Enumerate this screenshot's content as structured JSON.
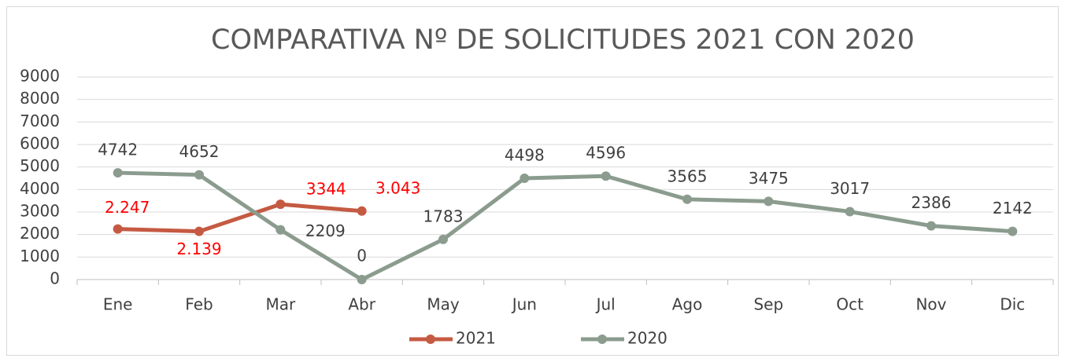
{
  "chart_data": {
    "type": "line",
    "title": "COMPARATIVA Nº DE SOLICITUDES 2021 CON 2020",
    "categories": [
      "Ene",
      "Feb",
      "Mar",
      "Abr",
      "May",
      "Jun",
      "Jul",
      "Ago",
      "Sep",
      "Oct",
      "Nov",
      "Dic"
    ],
    "series": [
      {
        "name": "2021",
        "color": "#c55a42",
        "label_color": "#ff0000",
        "values": [
          2247,
          2139,
          3344,
          3043,
          null,
          null,
          null,
          null,
          null,
          null,
          null,
          null
        ],
        "value_labels": [
          "2.247",
          "2.139",
          "3344",
          "3.043",
          null,
          null,
          null,
          null,
          null,
          null,
          null,
          null
        ]
      },
      {
        "name": "2020",
        "color": "#8b9c8f",
        "label_color": "#404040",
        "values": [
          4742,
          4652,
          2209,
          0,
          1783,
          4498,
          4596,
          3565,
          3475,
          3017,
          2386,
          2142
        ]
      }
    ],
    "ylim": [
      0,
      9000
    ],
    "yticks": [
      0,
      1000,
      2000,
      3000,
      4000,
      5000,
      6000,
      7000,
      8000,
      9000
    ],
    "grid": true,
    "legend": "bottom"
  }
}
